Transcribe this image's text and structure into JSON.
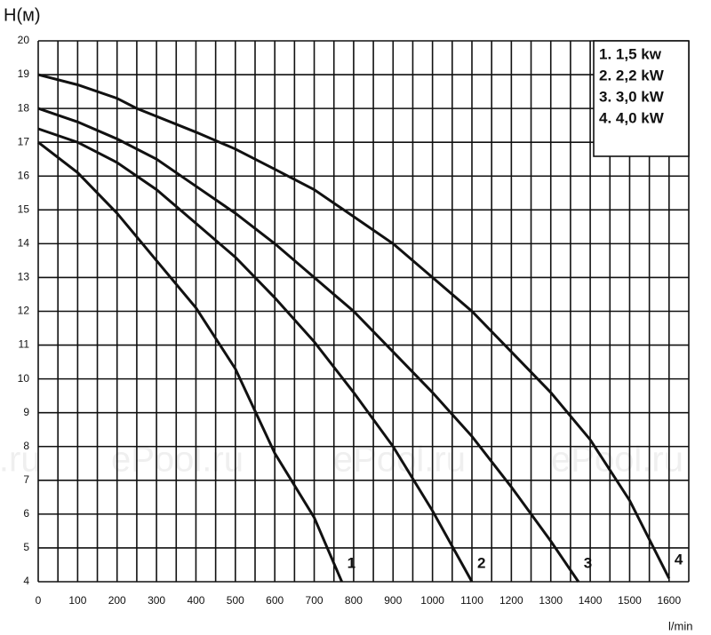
{
  "chart_data": {
    "type": "line",
    "y_label": "H(м)",
    "x_label": "l/min",
    "xlim": [
      0,
      1650
    ],
    "ylim": [
      4,
      20
    ],
    "xticks": [
      0,
      100,
      200,
      300,
      400,
      500,
      600,
      700,
      800,
      900,
      1000,
      1100,
      1200,
      1300,
      1400,
      1500,
      1600
    ],
    "yticks": [
      4,
      5,
      6,
      7,
      8,
      9,
      10,
      11,
      12,
      13,
      14,
      15,
      16,
      17,
      18,
      19,
      20
    ],
    "grid": true,
    "legend": "upper right",
    "watermarks": [
      "l.ru",
      "ePool.ru",
      "ePool.ru",
      "ePool.ru"
    ],
    "series": [
      {
        "name": "1. 1,5 kw",
        "end_label": "1",
        "color": "#111111",
        "x": [
          0,
          100,
          200,
          300,
          400,
          500,
          600,
          700,
          770
        ],
        "values": [
          17,
          16.1,
          14.9,
          13.5,
          12.1,
          10.3,
          7.8,
          5.9,
          4
        ]
      },
      {
        "name": "2. 2,2 kW",
        "end_label": "2",
        "color": "#111111",
        "x": [
          0,
          100,
          200,
          300,
          400,
          500,
          600,
          700,
          800,
          900,
          1000,
          1100
        ],
        "values": [
          17.4,
          17,
          16.4,
          15.6,
          14.6,
          13.6,
          12.4,
          11.1,
          9.6,
          8,
          6.1,
          4
        ]
      },
      {
        "name": "3. 3,0 kW",
        "end_label": "3",
        "color": "#111111",
        "x": [
          0,
          100,
          200,
          300,
          400,
          500,
          600,
          700,
          800,
          900,
          1000,
          1100,
          1200,
          1300,
          1370
        ],
        "values": [
          18,
          17.6,
          17.1,
          16.5,
          15.7,
          14.9,
          14,
          13,
          12,
          10.8,
          9.6,
          8.3,
          6.8,
          5.2,
          4
        ]
      },
      {
        "name": "4. 4,0 kW",
        "end_label": "4",
        "color": "#111111",
        "x": [
          0,
          100,
          200,
          250,
          400,
          500,
          600,
          700,
          800,
          900,
          1000,
          1100,
          1200,
          1300,
          1400,
          1500,
          1600
        ],
        "values": [
          19,
          18.7,
          18.3,
          18,
          17.3,
          16.8,
          16.2,
          15.6,
          14.8,
          14,
          13,
          12,
          10.8,
          9.6,
          8.2,
          6.4,
          4.1
        ]
      }
    ]
  }
}
